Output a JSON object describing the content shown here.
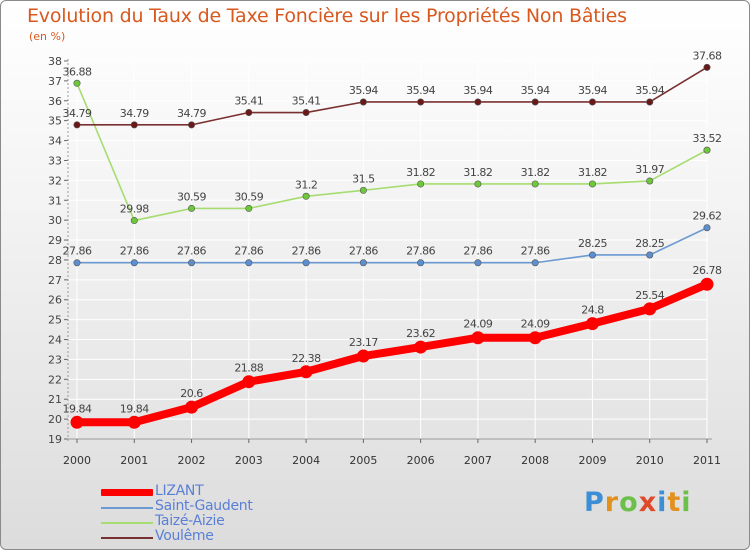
{
  "title": "Evolution du Taux de Taxe Foncière sur les Propriétés Non Bâties",
  "unit_label": "(en %)",
  "brand": {
    "letters": [
      {
        "ch": "P",
        "color": "#3c8fd6"
      },
      {
        "ch": "r",
        "color": "#e2901e"
      },
      {
        "ch": "o",
        "color": "#6cc04a"
      },
      {
        "ch": "x",
        "color": "#e04a2a"
      },
      {
        "ch": "i",
        "color": "#3c8fd6"
      },
      {
        "ch": "t",
        "color": "#e2901e"
      },
      {
        "ch": "i",
        "color": "#6cc04a"
      }
    ]
  },
  "chart_data": {
    "type": "line",
    "title": "Evolution du Taux de Taxe Foncière sur les Propriétés Non Bâties",
    "ylabel": "(en %)",
    "xlabel": "",
    "categories": [
      "2000",
      "2001",
      "2002",
      "2003",
      "2004",
      "2005",
      "2006",
      "2007",
      "2008",
      "2009",
      "2010",
      "2011"
    ],
    "ylim": [
      19,
      38
    ],
    "yticks": [
      19,
      20,
      21,
      22,
      23,
      24,
      25,
      26,
      27,
      28,
      29,
      30,
      31,
      32,
      33,
      34,
      35,
      36,
      37,
      38
    ],
    "grid": true,
    "legend_position": "bottom-left",
    "series": [
      {
        "name": "LIZANT",
        "color": "#ff0000",
        "point_color": "#ff0000",
        "emphasis": true,
        "values": [
          19.84,
          19.84,
          20.6,
          21.88,
          22.38,
          23.17,
          23.62,
          24.09,
          24.09,
          24.8,
          25.54,
          26.78
        ],
        "labels": [
          "19.84",
          "19.84",
          "20.6",
          "21.88",
          "22.38",
          "23.17",
          "23.62",
          "24.09",
          "24.09",
          "24.8",
          "25.54",
          "26.78"
        ]
      },
      {
        "name": "Saint-Gaudent",
        "color": "#6a9ad1",
        "point_color": "#5b8fd0",
        "emphasis": false,
        "values": [
          27.86,
          27.86,
          27.86,
          27.86,
          27.86,
          27.86,
          27.86,
          27.86,
          27.86,
          28.25,
          28.25,
          29.62
        ],
        "labels": [
          "27.86",
          "27.86",
          "27.86",
          "27.86",
          "27.86",
          "27.86",
          "27.86",
          "27.86",
          "27.86",
          "28.25",
          "28.25",
          "29.62"
        ]
      },
      {
        "name": "Taizé-Aizie",
        "color": "#a6dc70",
        "point_color": "#6dc83c",
        "emphasis": false,
        "values": [
          36.88,
          29.98,
          30.59,
          30.59,
          31.2,
          31.5,
          31.82,
          31.82,
          31.82,
          31.82,
          31.97,
          33.52
        ],
        "labels": [
          "36.88",
          "29.98",
          "30.59",
          "30.59",
          "31.2",
          "31.5",
          "31.82",
          "31.82",
          "31.82",
          "31.82",
          "31.97",
          "33.52"
        ]
      },
      {
        "name": "Voulême",
        "color": "#7a3030",
        "point_color": "#6a1818",
        "emphasis": false,
        "values": [
          34.79,
          34.79,
          34.79,
          35.41,
          35.41,
          35.94,
          35.94,
          35.94,
          35.94,
          35.94,
          35.94,
          37.68
        ],
        "labels": [
          "34.79",
          "34.79",
          "34.79",
          "35.41",
          "35.41",
          "35.94",
          "35.94",
          "35.94",
          "35.94",
          "35.94",
          "35.94",
          "37.68"
        ]
      }
    ]
  }
}
